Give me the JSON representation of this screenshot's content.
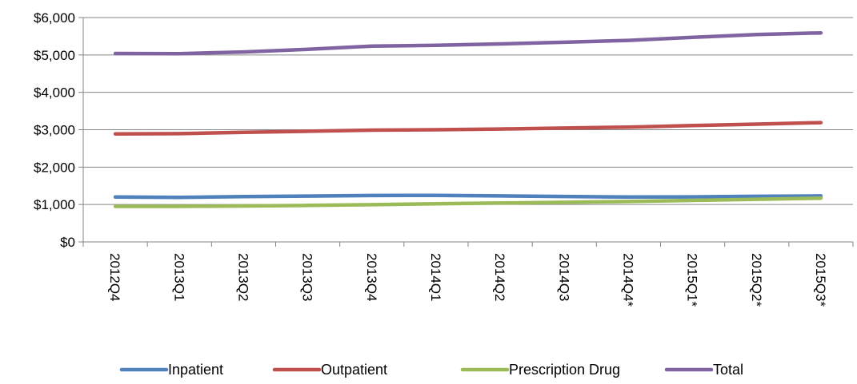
{
  "chart_data": {
    "type": "line",
    "title": "",
    "xlabel": "",
    "ylabel": "",
    "categories": [
      "2012Q4",
      "2013Q1",
      "2013Q2",
      "2013Q3",
      "2013Q4",
      "2014Q1",
      "2014Q2",
      "2014Q3",
      "2014Q4*",
      "2015Q1*",
      "2015Q2*",
      "2015Q3*"
    ],
    "ylim": [
      0,
      6000
    ],
    "yticks": [
      0,
      1000,
      2000,
      3000,
      4000,
      5000,
      6000
    ],
    "ytick_labels": [
      "$0",
      "$1,000",
      "$2,000",
      "$3,000",
      "$4,000",
      "$5,000",
      "$6,000"
    ],
    "grid": true,
    "legend_position": "bottom",
    "series": [
      {
        "name": "Inpatient",
        "color": "#4F81BD",
        "values": [
          1200,
          1190,
          1210,
          1225,
          1240,
          1245,
          1230,
          1215,
          1200,
          1205,
          1220,
          1230
        ]
      },
      {
        "name": "Outpatient",
        "color": "#C0504D",
        "values": [
          2890,
          2895,
          2930,
          2960,
          2990,
          3000,
          3020,
          3045,
          3070,
          3110,
          3150,
          3190
        ]
      },
      {
        "name": "Prescription Drug",
        "color": "#9BBB59",
        "values": [
          950,
          950,
          960,
          975,
          995,
          1020,
          1040,
          1060,
          1080,
          1110,
          1140,
          1170
        ]
      },
      {
        "name": "Total",
        "color": "#8064A2",
        "values": [
          5040,
          5035,
          5080,
          5150,
          5235,
          5260,
          5295,
          5340,
          5390,
          5470,
          5545,
          5590
        ]
      }
    ]
  }
}
